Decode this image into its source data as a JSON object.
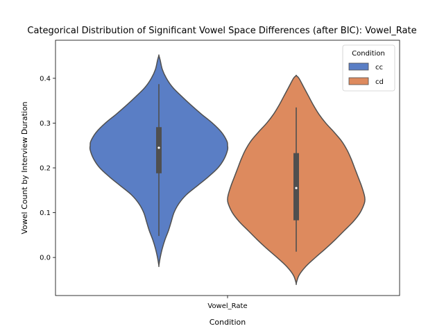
{
  "chart_data": {
    "type": "violin",
    "title": "Categorical Distribution of Significant Vowel Space Differences (after BIC): Vowel_Rate",
    "xlabel": "Condition",
    "ylabel": "Vowel Count by Interview Duration",
    "categories": [
      "Vowel_Rate"
    ],
    "ylim": [
      -0.085,
      0.485
    ],
    "yticks": [
      0.0,
      0.1,
      0.2,
      0.3,
      0.4
    ],
    "ytick_labels": [
      "0.0",
      "0.1",
      "0.2",
      "0.3",
      "0.4"
    ],
    "legend": {
      "title": "Condition",
      "position": "top-right"
    },
    "series": [
      {
        "name": "cc",
        "color": "#5A7EC5",
        "min": 0.048,
        "q1": 0.188,
        "median": 0.245,
        "q3": 0.291,
        "max": 0.387,
        "kde_range": [
          -0.018,
          0.451
        ],
        "density_profile": [
          [
            -0.018,
            0.0
          ],
          [
            0.0,
            0.02
          ],
          [
            0.02,
            0.05
          ],
          [
            0.04,
            0.09
          ],
          [
            0.06,
            0.14
          ],
          [
            0.08,
            0.18
          ],
          [
            0.1,
            0.22
          ],
          [
            0.12,
            0.29
          ],
          [
            0.14,
            0.4
          ],
          [
            0.16,
            0.56
          ],
          [
            0.18,
            0.72
          ],
          [
            0.2,
            0.86
          ],
          [
            0.22,
            0.95
          ],
          [
            0.24,
            1.0
          ],
          [
            0.25,
            1.0
          ],
          [
            0.26,
            0.99
          ],
          [
            0.28,
            0.91
          ],
          [
            0.3,
            0.78
          ],
          [
            0.32,
            0.62
          ],
          [
            0.34,
            0.47
          ],
          [
            0.36,
            0.33
          ],
          [
            0.38,
            0.2
          ],
          [
            0.4,
            0.11
          ],
          [
            0.42,
            0.05
          ],
          [
            0.44,
            0.02
          ],
          [
            0.451,
            0.0
          ]
        ]
      },
      {
        "name": "cd",
        "color": "#DD8A5E",
        "min": 0.013,
        "q1": 0.083,
        "median": 0.155,
        "q3": 0.233,
        "max": 0.335,
        "kde_range": [
          -0.058,
          0.406
        ],
        "density_profile": [
          [
            -0.058,
            0.0
          ],
          [
            -0.04,
            0.04
          ],
          [
            -0.02,
            0.14
          ],
          [
            0.0,
            0.28
          ],
          [
            0.02,
            0.43
          ],
          [
            0.04,
            0.57
          ],
          [
            0.06,
            0.7
          ],
          [
            0.08,
            0.83
          ],
          [
            0.1,
            0.93
          ],
          [
            0.12,
            0.99
          ],
          [
            0.13,
            1.0
          ],
          [
            0.14,
            0.99
          ],
          [
            0.16,
            0.95
          ],
          [
            0.18,
            0.9
          ],
          [
            0.2,
            0.85
          ],
          [
            0.22,
            0.8
          ],
          [
            0.24,
            0.74
          ],
          [
            0.26,
            0.66
          ],
          [
            0.28,
            0.55
          ],
          [
            0.3,
            0.43
          ],
          [
            0.32,
            0.33
          ],
          [
            0.34,
            0.25
          ],
          [
            0.36,
            0.18
          ],
          [
            0.38,
            0.11
          ],
          [
            0.4,
            0.04
          ],
          [
            0.406,
            0.0
          ]
        ]
      }
    ]
  }
}
